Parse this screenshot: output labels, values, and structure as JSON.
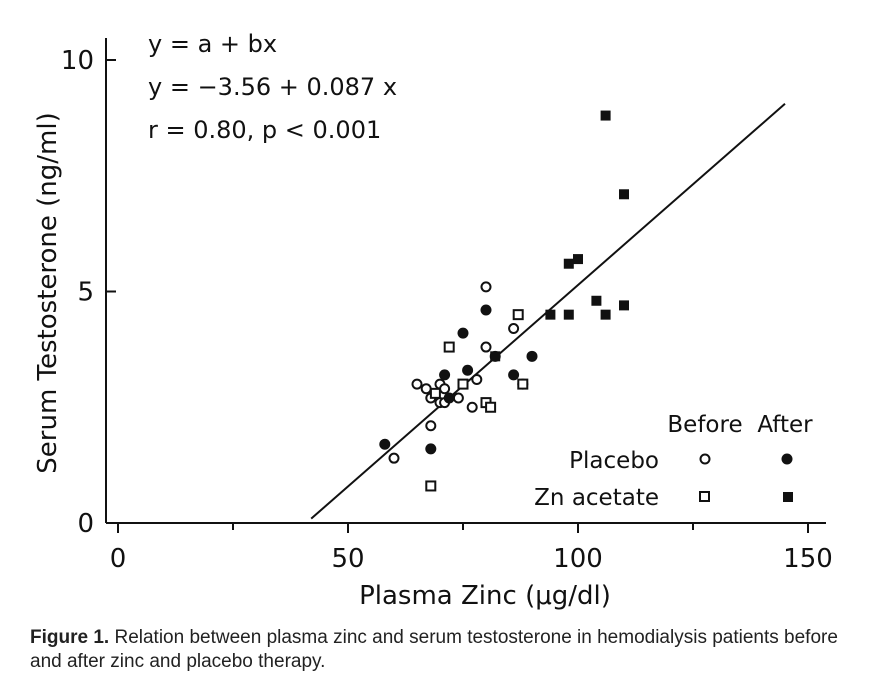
{
  "chart_data": {
    "type": "scatter",
    "xlabel": "Plasma Zinc (μg/dl)",
    "ylabel": "Serum Testosterone (ng/ml)",
    "xlim": [
      0,
      160
    ],
    "ylim": [
      0,
      10.5
    ],
    "xticks": [
      0,
      50,
      100,
      150
    ],
    "yticks": [
      0,
      5,
      10
    ],
    "xtick_labels": [
      "0",
      "50",
      "100",
      "150"
    ],
    "ytick_labels": [
      "0",
      "5",
      "10"
    ],
    "annotations": [
      "y = a + bx",
      "y = −3.56 + 0.087 x",
      "r = 0.80, p < 0.001"
    ],
    "fit_line": {
      "intercept": -3.56,
      "slope": 0.087,
      "x_range": [
        42,
        145
      ]
    },
    "legend": {
      "placement": "bottom-right",
      "col_headers": [
        "Before",
        "After"
      ],
      "rows": [
        "Placebo",
        "Zn acetate"
      ]
    },
    "series": [
      {
        "name": "Placebo Before",
        "marker": "open-circle",
        "points": [
          [
            60,
            1.4
          ],
          [
            65,
            3.0
          ],
          [
            67,
            2.9
          ],
          [
            68,
            2.7
          ],
          [
            68,
            2.1
          ],
          [
            70,
            2.6
          ],
          [
            70,
            3.0
          ],
          [
            71,
            2.9
          ],
          [
            71,
            2.6
          ],
          [
            74,
            2.7
          ],
          [
            77,
            2.5
          ],
          [
            78,
            3.1
          ],
          [
            80,
            5.1
          ],
          [
            80,
            3.8
          ],
          [
            86,
            4.2
          ],
          [
            88,
            3.0
          ]
        ]
      },
      {
        "name": "Placebo After",
        "marker": "filled-circle",
        "points": [
          [
            58,
            1.7
          ],
          [
            68,
            1.6
          ],
          [
            71,
            3.2
          ],
          [
            72,
            2.7
          ],
          [
            75,
            4.1
          ],
          [
            76,
            3.3
          ],
          [
            80,
            4.6
          ],
          [
            82,
            3.6
          ],
          [
            86,
            3.2
          ],
          [
            90,
            3.6
          ]
        ]
      },
      {
        "name": "Zn acetate Before",
        "marker": "open-square",
        "points": [
          [
            68,
            0.8
          ],
          [
            69,
            2.8
          ],
          [
            72,
            3.8
          ],
          [
            75,
            3.0
          ],
          [
            80,
            2.6
          ],
          [
            81,
            2.5
          ],
          [
            87,
            4.5
          ],
          [
            88,
            3.0
          ]
        ]
      },
      {
        "name": "Zn acetate After",
        "marker": "filled-square",
        "points": [
          [
            82,
            3.6
          ],
          [
            94,
            4.5
          ],
          [
            98,
            4.5
          ],
          [
            98,
            5.6
          ],
          [
            100,
            5.7
          ],
          [
            104,
            4.8
          ],
          [
            106,
            8.8
          ],
          [
            106,
            4.5
          ],
          [
            110,
            7.1
          ],
          [
            110,
            4.7
          ]
        ]
      }
    ]
  },
  "caption": {
    "label": "Figure 1.",
    "text": " Relation between plasma zinc and serum testosterone in hemodialysis patients before and after zinc and placebo therapy."
  }
}
